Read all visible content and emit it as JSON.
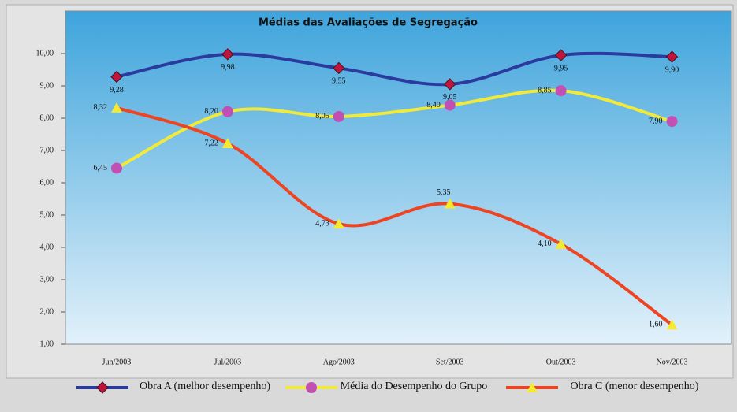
{
  "chart_data": {
    "type": "line",
    "title": "Médias das Avaliações de Segregação",
    "categories": [
      "Jun/2003",
      "Jul/2003",
      "Ago/2003",
      "Set/2003",
      "Out/2003",
      "Nov/2003"
    ],
    "ylim": [
      1,
      11
    ],
    "yticks": [
      {
        "value": 1,
        "label": "1,00"
      },
      {
        "value": 2,
        "label": "2,00"
      },
      {
        "value": 3,
        "label": "3,00"
      },
      {
        "value": 4,
        "label": "4,00"
      },
      {
        "value": 5,
        "label": "5,00"
      },
      {
        "value": 6,
        "label": "6,00"
      },
      {
        "value": 7,
        "label": "7,00"
      },
      {
        "value": 8,
        "label": "8,00"
      },
      {
        "value": 9,
        "label": "9,00"
      },
      {
        "value": 10,
        "label": "10,00"
      }
    ],
    "series": [
      {
        "name": "Obra A (melhor desempenho)",
        "color": "#2b3a9e",
        "marker_color": "#c0143c",
        "values": [
          9.28,
          9.98,
          9.55,
          9.05,
          9.95,
          9.9
        ],
        "value_labels": [
          "9,28",
          "9,98",
          "9,55",
          "9,05",
          "9,95",
          "9,90"
        ]
      },
      {
        "name": "Média do Desempenho do Grupo",
        "color": "#f2ea3a",
        "marker_color": "#c24fb4",
        "values": [
          6.45,
          8.2,
          8.05,
          8.4,
          8.85,
          7.9
        ],
        "value_labels": [
          "6,45",
          "8,20",
          "8,05",
          "8,40",
          "8,85",
          "7,90"
        ]
      },
      {
        "name": "Obra C (menor desempenho)",
        "color": "#ee4422",
        "marker_color": "#f5ea30",
        "values": [
          8.32,
          7.22,
          4.73,
          5.35,
          4.1,
          1.6
        ],
        "value_labels": [
          "8,32",
          "7,22",
          "4,73",
          "5,35",
          "4,10",
          "1,60"
        ]
      }
    ]
  }
}
